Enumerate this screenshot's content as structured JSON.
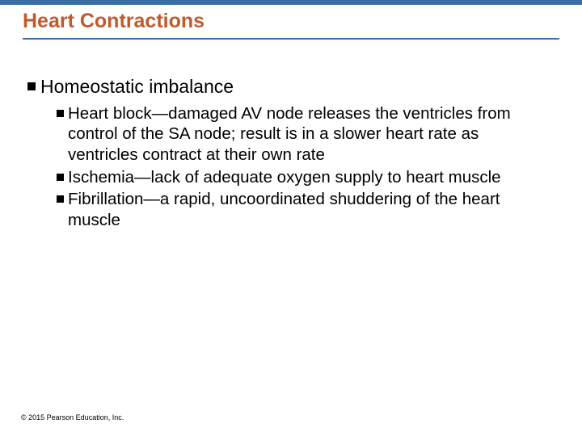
{
  "colors": {
    "header_bar": "#3a6ea5",
    "title": "#c05a2c",
    "underline": "#3a6ea5",
    "bullet": "#000000",
    "body_text": "#000000"
  },
  "slide": {
    "title": "Heart Contractions",
    "level1": {
      "text": "Homeostatic imbalance"
    },
    "level2": [
      {
        "text": "Heart block—damaged AV node releases the ventricles from control of the SA node; result is in a slower heart rate as ventricles contract at their own rate"
      },
      {
        "text": "Ischemia—lack of adequate oxygen supply to heart muscle"
      },
      {
        "text": "Fibrillation—a rapid, uncoordinated shuddering of the heart muscle"
      }
    ],
    "footer": "© 2015 Pearson Education, Inc."
  }
}
